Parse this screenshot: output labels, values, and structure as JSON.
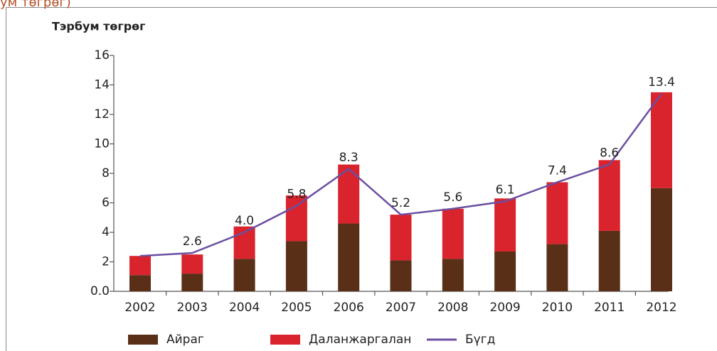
{
  "chart_data": {
    "type": "bar-line",
    "caption": "ум төгрөг)",
    "y_label": "Тэрбум төгрөг",
    "categories": [
      "2002",
      "2003",
      "2004",
      "2005",
      "2006",
      "2007",
      "2008",
      "2009",
      "2010",
      "2011",
      "2012"
    ],
    "series": [
      {
        "name": "Айраг",
        "type": "bar",
        "color": "#5a2f17",
        "values": [
          1.1,
          1.2,
          2.2,
          3.4,
          4.6,
          2.1,
          2.2,
          2.7,
          3.2,
          4.1,
          7.0
        ]
      },
      {
        "name": "Даланжаргалан",
        "type": "bar",
        "color": "#d9232d",
        "values": [
          1.3,
          1.3,
          2.2,
          3.1,
          4.0,
          3.1,
          3.4,
          3.6,
          4.2,
          4.8,
          6.5
        ]
      },
      {
        "name": "Бүгд",
        "type": "line",
        "color": "#6a4fa0",
        "values": [
          2.4,
          2.6,
          4.0,
          5.8,
          8.3,
          5.2,
          5.6,
          6.1,
          7.4,
          8.6,
          13.4
        ],
        "value_labels": [
          null,
          "2.6",
          "4.0",
          "5.8",
          "8.3",
          "5.2",
          "5.6",
          "6.1",
          "7.4",
          "8.6",
          "13.4"
        ]
      }
    ],
    "stacked": true,
    "ylim": [
      0,
      16
    ],
    "yticks": [
      {
        "value": 0,
        "label": "0.0"
      },
      2,
      4,
      6,
      8,
      10,
      12,
      14,
      16
    ],
    "legend": "bottom"
  }
}
